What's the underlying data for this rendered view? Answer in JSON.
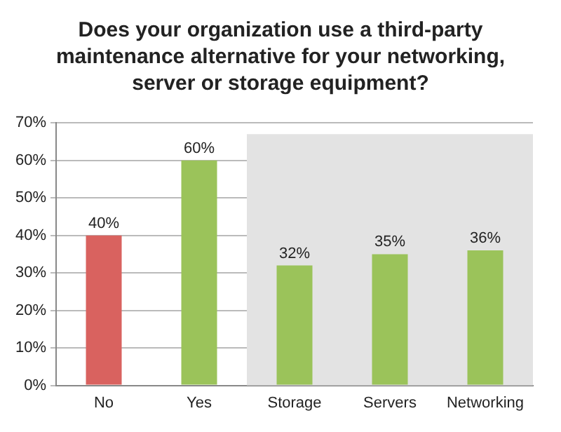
{
  "chart_data": {
    "type": "bar",
    "title": "Does your organization use a third-party maintenance alternative for your networking, server or storage equipment?",
    "categories": [
      "No",
      "Yes",
      "Storage",
      "Servers",
      "Networking"
    ],
    "values": [
      40,
      60,
      32,
      35,
      36
    ],
    "colors": [
      "#d9625f",
      "#9bc35a",
      "#9bc35a",
      "#9bc35a",
      "#9bc35a"
    ],
    "value_labels": [
      "40%",
      "60%",
      "32%",
      "35%",
      "36%"
    ],
    "ylim": [
      0,
      70
    ],
    "yticks": [
      {
        "value": 0,
        "label": "0%"
      },
      {
        "value": 10,
        "label": "10%"
      },
      {
        "value": 20,
        "label": "20%"
      },
      {
        "value": 30,
        "label": "30%"
      },
      {
        "value": 40,
        "label": "40%"
      },
      {
        "value": 50,
        "label": "50%"
      },
      {
        "value": 60,
        "label": "60%"
      },
      {
        "value": 70,
        "label": "70%"
      }
    ],
    "bands": [
      {
        "axis": "x",
        "from": "Storage",
        "to": "Networking",
        "color": "#e3e3e3"
      }
    ],
    "grid": "y",
    "legend": false
  }
}
